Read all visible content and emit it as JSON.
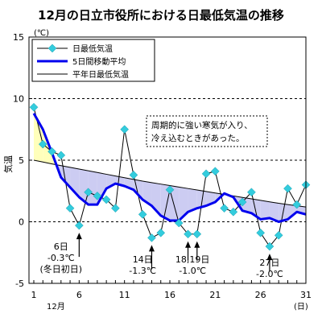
{
  "chart_data": {
    "type": "line",
    "title": "12月の日立市役所における日最低気温の推移",
    "ylabel": "気温",
    "yunit": "(℃)",
    "xunit": "(日)",
    "month_label": "12月",
    "ylim": [
      -5,
      15
    ],
    "xlim": [
      1,
      31
    ],
    "y_ticks": [
      "15",
      "10",
      "5",
      "0",
      "-5"
    ],
    "y_tick_values": [
      15,
      10,
      5,
      0,
      -5
    ],
    "x_ticks": [
      "1",
      "6",
      "11",
      "16",
      "21",
      "26",
      "31"
    ],
    "x_tick_values": [
      1,
      6,
      11,
      16,
      21,
      26,
      31
    ],
    "grid": "dashed horizontal",
    "legend_position": "top-left",
    "x": [
      1,
      2,
      3,
      4,
      5,
      6,
      7,
      8,
      9,
      10,
      11,
      12,
      13,
      14,
      15,
      16,
      17,
      18,
      19,
      20,
      21,
      22,
      23,
      24,
      25,
      26,
      27,
      28,
      29,
      30,
      31
    ],
    "series": [
      {
        "name": "日最低気温",
        "color": "#33ccdd",
        "values": [
          9.3,
          6.3,
          5.7,
          5.4,
          1.1,
          -0.3,
          2.4,
          2.1,
          1.8,
          1.1,
          7.5,
          3.8,
          0.6,
          -1.3,
          -0.9,
          2.6,
          -0.1,
          -1.0,
          -1.0,
          3.9,
          4.1,
          1.1,
          0.8,
          1.6,
          2.4,
          -0.9,
          -2.0,
          -1.1,
          2.7,
          1.4,
          3.0
        ]
      },
      {
        "name": "5日間移動平均",
        "color": "#0000ee",
        "values": [
          8.8,
          7.5,
          5.6,
          3.6,
          2.8,
          2.0,
          1.4,
          1.4,
          2.7,
          3.1,
          2.9,
          2.6,
          1.8,
          1.3,
          0.5,
          0.1,
          0.1,
          0.8,
          1.1,
          1.3,
          1.6,
          2.3,
          2.0,
          0.9,
          0.7,
          0.2,
          0.3,
          0.0,
          0.2,
          0.8,
          0.6
        ]
      },
      {
        "name": "平年日最低気温",
        "color": "#000000",
        "values": [
          5.0,
          4.85,
          4.7,
          4.56,
          4.42,
          4.28,
          4.14,
          4.0,
          3.86,
          3.72,
          3.58,
          3.44,
          3.3,
          3.18,
          3.06,
          2.94,
          2.82,
          2.7,
          2.58,
          2.46,
          2.34,
          2.22,
          2.1,
          1.98,
          1.86,
          1.74,
          1.62,
          1.5,
          1.4,
          1.3,
          1.2
        ]
      }
    ],
    "annotation_box": [
      "周期的に強い寒気が入り、",
      "冷え込むときがあった。"
    ],
    "callouts": [
      {
        "x": 6,
        "lines": [
          "6日",
          "-0.3℃",
          "(冬日初日)"
        ]
      },
      {
        "x": 14,
        "lines": [
          "14日",
          "-1.3℃"
        ]
      },
      {
        "x": 18,
        "x2": 19,
        "lines": [
          "18,19日",
          "-1.0℃"
        ]
      },
      {
        "x": 27,
        "lines": [
          "27日",
          "-2.0℃"
        ]
      }
    ]
  }
}
